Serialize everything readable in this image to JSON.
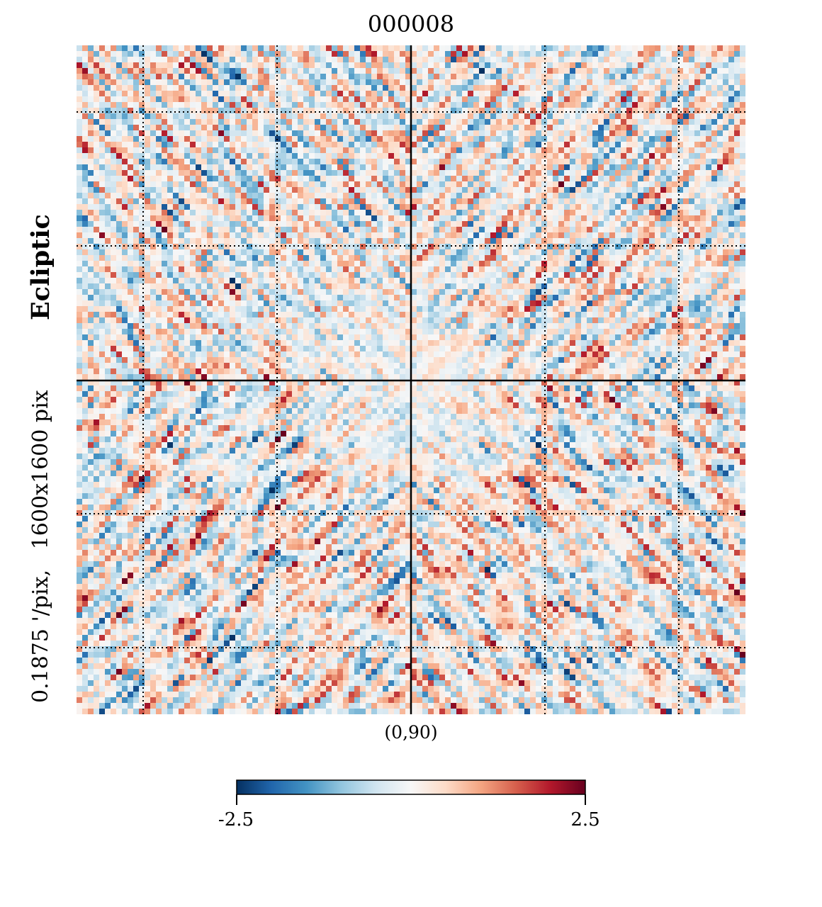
{
  "figure": {
    "title": "000008",
    "coord_system": "Ecliptic",
    "resolution": "0.1875 '/pix,   1600x1600 pix",
    "center_label": "(0,90)"
  },
  "colorbar": {
    "min_label": "-2.5",
    "max_label": "2.5",
    "colors": [
      "#053061",
      "#2166ac",
      "#4393c3",
      "#92c5de",
      "#d1e5f0",
      "#f7f7f7",
      "#fddbc7",
      "#f4a582",
      "#d6604d",
      "#b2182b",
      "#67001f"
    ]
  },
  "chart_data": {
    "type": "heatmap",
    "title": "000008",
    "projection": "gnomonic",
    "coord": "Ecliptic",
    "center": "(0,90)",
    "reso_arcmin_per_pix": 0.1875,
    "size_pix": [
      1600,
      1600
    ],
    "colormap": "RdBu_r",
    "vmin": -2.5,
    "vmax": 2.5,
    "graticule": true
  }
}
